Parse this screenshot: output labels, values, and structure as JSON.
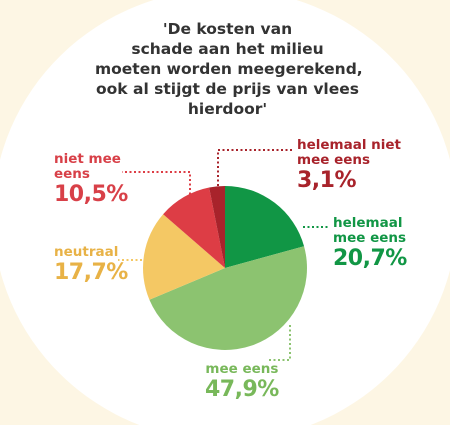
{
  "chart_data": {
    "type": "pie",
    "title": "'De kosten van schade aan het milieu moeten worden meegerekend, ook al stijgt de prijs van vlees hierdoor'",
    "title_lines": [
      "'De kosten van",
      "schade aan het milieu",
      "moeten worden meegerekend,",
      "ook al stijgt de prijs van vlees",
      "hierdoor'"
    ],
    "start_angle_deg": 0,
    "direction": "clockwise",
    "slices": [
      {
        "label": "helemaal mee eens",
        "value": 20.7,
        "value_label": "20,7%",
        "color": "#119645"
      },
      {
        "label": "mee eens",
        "value": 47.9,
        "value_label": "47,9%",
        "color": "#8cc370"
      },
      {
        "label": "neutraal",
        "value": 17.7,
        "value_label": "17,7%",
        "color": "#f4c864"
      },
      {
        "label": "niet mee eens",
        "value": 10.5,
        "value_label": "10,5%",
        "color": "#dd3d45"
      },
      {
        "label": "helemaal niet mee eens",
        "value": 3.1,
        "value_label": "3,1%",
        "color": "#a8232b"
      }
    ],
    "labels": {
      "helemaal_niet_mee_eens": {
        "lines": [
          "helemaal niet",
          "mee eens"
        ],
        "value": "3,1%"
      },
      "niet_mee_eens": {
        "lines": [
          "niet mee",
          "eens"
        ],
        "value": "10,5%"
      },
      "helemaal_mee_eens": {
        "lines": [
          "helemaal",
          "mee eens"
        ],
        "value": "20,7%"
      },
      "neutraal": {
        "lines": [
          "neutraal"
        ],
        "value": "17,7%"
      },
      "mee_eens": {
        "lines": [
          "mee eens"
        ],
        "value": "47,9%"
      }
    },
    "background_color": "#fdf6e4",
    "disc_color": "#ffffff",
    "leader_line_style": "dotted"
  }
}
